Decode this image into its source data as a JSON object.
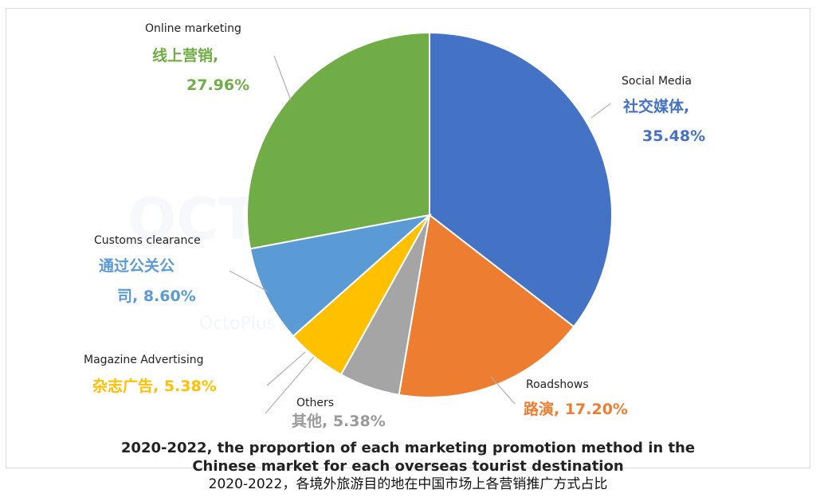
{
  "chart_data": {
    "type": "pie",
    "slices": [
      {
        "name": "Social Media",
        "label_zh": "社交媒体,",
        "value": 35.48,
        "value_label": "35.48%",
        "color": "#4472C4"
      },
      {
        "name": "Roadshows",
        "label_zh": "路演,",
        "value": 17.2,
        "value_label": "17.20%",
        "color": "#ED7D31"
      },
      {
        "name": "Others",
        "label_zh": "其他,",
        "value": 5.38,
        "value_label": "5.38%",
        "color": "#A5A5A5"
      },
      {
        "name": "Magazine Advertising",
        "label_zh": "杂志广告,",
        "value": 5.38,
        "value_label": "5.38%",
        "color": "#FFC000"
      },
      {
        "name": "Customs clearance",
        "label_zh": "通过公关公司,",
        "value": 8.6,
        "value_label": "8.60%",
        "color": "#5B9BD5"
      },
      {
        "name": "Online marketing",
        "label_zh": "线上营销,",
        "value": 27.96,
        "value_label": "27.96%",
        "color": "#70AD47"
      }
    ],
    "title_en_line1": "2020-2022, the proportion of each marketing promotion method in the",
    "title_en_line2": "Chinese market for each overseas tourist destination",
    "title_zh": "2020-2022，各境外旅游目的地在中国市场上各营销推广方式占比"
  },
  "watermark": {
    "text": "OCTO",
    "subtext": "OctoPlus Media Global Limited"
  }
}
